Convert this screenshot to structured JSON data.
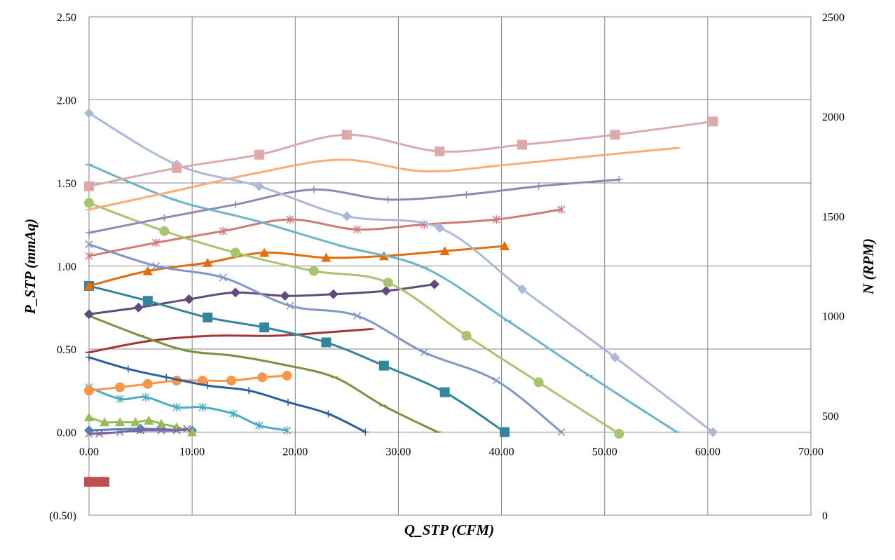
{
  "chart_data": {
    "type": "line",
    "title": "",
    "xlabel": "Q_STP (CFM)",
    "ylabel": "P_STP (mmAq)",
    "y2label": "N (RPM)",
    "xlim": [
      0,
      70
    ],
    "ylim": [
      -0.5,
      2.5
    ],
    "y2lim": [
      0,
      2500
    ],
    "grid": true,
    "legend": "none",
    "x_ticks": [
      "0.00",
      "10.00",
      "20.00",
      "30.00",
      "40.00",
      "50.00",
      "60.00",
      "70.00"
    ],
    "x_tick_values": [
      0,
      10,
      20,
      30,
      40,
      50,
      60,
      70
    ],
    "y_ticks": [
      "(0.50)",
      "0.00",
      "0.50",
      "1.00",
      "1.50",
      "2.00",
      "2.50"
    ],
    "y_tick_values": [
      -0.5,
      0,
      0.5,
      1,
      1.5,
      2,
      2.5
    ],
    "y2_ticks": [
      "0",
      "500",
      "1000",
      "1500",
      "2000",
      "2500"
    ],
    "y2_tick_values": [
      0,
      500,
      1000,
      1500,
      2000,
      2500
    ],
    "negative_tick_color": "#ff0000",
    "series": [
      {
        "axis": "left",
        "color": "#4f81bd",
        "marker": "diamond",
        "x": [
          0,
          5,
          10
        ],
        "y": [
          0.01,
          0.02,
          0.01
        ]
      },
      {
        "axis": "left",
        "color": "#c0504d",
        "marker": "square",
        "x": [
          0,
          0.8,
          1.5
        ],
        "y": [
          -0.3,
          -0.3,
          -0.3
        ]
      },
      {
        "axis": "left",
        "color": "#9bbb59",
        "marker": "triangle",
        "x": [
          0,
          1.5,
          3,
          4.5,
          5.8,
          7,
          8.5,
          10
        ],
        "y": [
          0.09,
          0.06,
          0.06,
          0.06,
          0.07,
          0.05,
          0.03,
          0.0
        ]
      },
      {
        "axis": "left",
        "color": "#8064a2",
        "marker": "x",
        "x": [
          0,
          1,
          3,
          5,
          7,
          8.5,
          9.5
        ],
        "y": [
          -0.01,
          -0.01,
          0.0,
          0.01,
          0.01,
          0.01,
          0.02
        ]
      },
      {
        "axis": "left",
        "color": "#4bacc6",
        "marker": "star",
        "x": [
          0,
          3,
          5.5,
          8.5,
          11,
          14,
          16.5,
          19.2
        ],
        "y": [
          0.27,
          0.2,
          0.21,
          0.15,
          0.15,
          0.11,
          0.04,
          0.01
        ]
      },
      {
        "axis": "left",
        "color": "#f79646",
        "marker": "circle",
        "x": [
          0,
          3,
          5.7,
          8.5,
          11,
          13.8,
          16.8,
          19.2
        ],
        "y": [
          0.25,
          0.27,
          0.29,
          0.31,
          0.31,
          0.31,
          0.33,
          0.34
        ]
      },
      {
        "axis": "left",
        "color": "#2c5f9e",
        "marker": "plus",
        "x": [
          0,
          3.8,
          7.5,
          11.5,
          15.5,
          19.3,
          23.2,
          26.8
        ],
        "y": [
          0.45,
          0.38,
          0.33,
          0.28,
          0.25,
          0.18,
          0.11,
          0.0
        ]
      },
      {
        "axis": "left",
        "color": "#a33532",
        "marker": "dash",
        "x": [
          0,
          6,
          12,
          18,
          23,
          27.3
        ],
        "y": [
          0.48,
          0.55,
          0.58,
          0.58,
          0.6,
          0.62
        ]
      },
      {
        "axis": "left",
        "color": "#77933c",
        "marker": "dash",
        "x": [
          0,
          5,
          9.5,
          14,
          18.5,
          23.8,
          28.5,
          33.8
        ],
        "y": [
          0.7,
          0.58,
          0.49,
          0.46,
          0.41,
          0.33,
          0.16,
          0.0
        ]
      },
      {
        "axis": "left",
        "color": "#604a7b",
        "marker": "diamond",
        "x": [
          0,
          4.8,
          9.7,
          14.2,
          19,
          23.7,
          28.8,
          33.5
        ],
        "y": [
          0.71,
          0.75,
          0.8,
          0.84,
          0.82,
          0.83,
          0.85,
          0.89
        ]
      },
      {
        "axis": "left",
        "color": "#31859c",
        "marker": "square",
        "x": [
          0,
          5.7,
          11.5,
          17,
          23,
          28.6,
          34.5,
          40.3
        ],
        "y": [
          0.88,
          0.79,
          0.69,
          0.63,
          0.54,
          0.4,
          0.24,
          0.0
        ]
      },
      {
        "axis": "left",
        "color": "#e46c0a",
        "marker": "triangle",
        "x": [
          0,
          5.7,
          11.5,
          17,
          23,
          28.6,
          34.5,
          40.3
        ],
        "y": [
          0.88,
          0.97,
          1.02,
          1.08,
          1.05,
          1.06,
          1.09,
          1.12
        ]
      },
      {
        "axis": "left",
        "color": "#7f96c9",
        "marker": "x",
        "x": [
          0,
          6.5,
          13,
          19.5,
          26,
          32.5,
          39.5,
          45.8
        ],
        "y": [
          1.13,
          1.0,
          0.93,
          0.76,
          0.7,
          0.48,
          0.31,
          0.0
        ]
      },
      {
        "axis": "left",
        "color": "#d07a78",
        "marker": "star",
        "x": [
          0,
          6.5,
          13,
          19.5,
          26,
          32.5,
          39.5,
          45.8
        ],
        "y": [
          1.06,
          1.14,
          1.21,
          1.28,
          1.22,
          1.25,
          1.28,
          1.34
        ]
      },
      {
        "axis": "left",
        "color": "#a9c46e",
        "marker": "circle",
        "x": [
          0,
          7.3,
          14.2,
          21.8,
          29,
          36.6,
          43.6,
          51.4
        ],
        "y": [
          1.38,
          1.21,
          1.08,
          0.97,
          0.9,
          0.58,
          0.3,
          -0.01
        ]
      },
      {
        "axis": "left",
        "color": "#9884b4",
        "marker": "plus",
        "x": [
          0,
          7.3,
          14.2,
          21.8,
          29,
          36.6,
          43.6,
          51.4
        ],
        "y": [
          1.2,
          1.29,
          1.37,
          1.46,
          1.4,
          1.43,
          1.48,
          1.52
        ]
      },
      {
        "axis": "left",
        "color": "#6ab5cc",
        "marker": "dash",
        "x": [
          0,
          8.2,
          16.3,
          24.5,
          32.5,
          40.6,
          48.5,
          57
        ],
        "y": [
          1.61,
          1.4,
          1.27,
          1.12,
          0.99,
          0.67,
          0.34,
          0.0
        ]
      },
      {
        "axis": "left",
        "color": "#f9ad78",
        "marker": "dash",
        "x": [
          0,
          8.2,
          16.3,
          24.5,
          32.5,
          40.6,
          48.5,
          57
        ],
        "y": [
          1.34,
          1.45,
          1.56,
          1.64,
          1.57,
          1.61,
          1.66,
          1.71
        ]
      },
      {
        "axis": "left",
        "color": "#aab9d8",
        "marker": "diamond",
        "x": [
          0,
          8.5,
          16.5,
          25,
          34,
          42,
          51,
          60.5
        ],
        "y": [
          1.92,
          1.61,
          1.48,
          1.3,
          1.23,
          0.86,
          0.45,
          0.0
        ]
      },
      {
        "axis": "left",
        "color": "#deaaa9",
        "marker": "square",
        "x": [
          0,
          8.5,
          16.5,
          25,
          34,
          42,
          51,
          60.5
        ],
        "y": [
          1.48,
          1.59,
          1.67,
          1.79,
          1.69,
          1.73,
          1.79,
          1.87
        ]
      }
    ]
  }
}
